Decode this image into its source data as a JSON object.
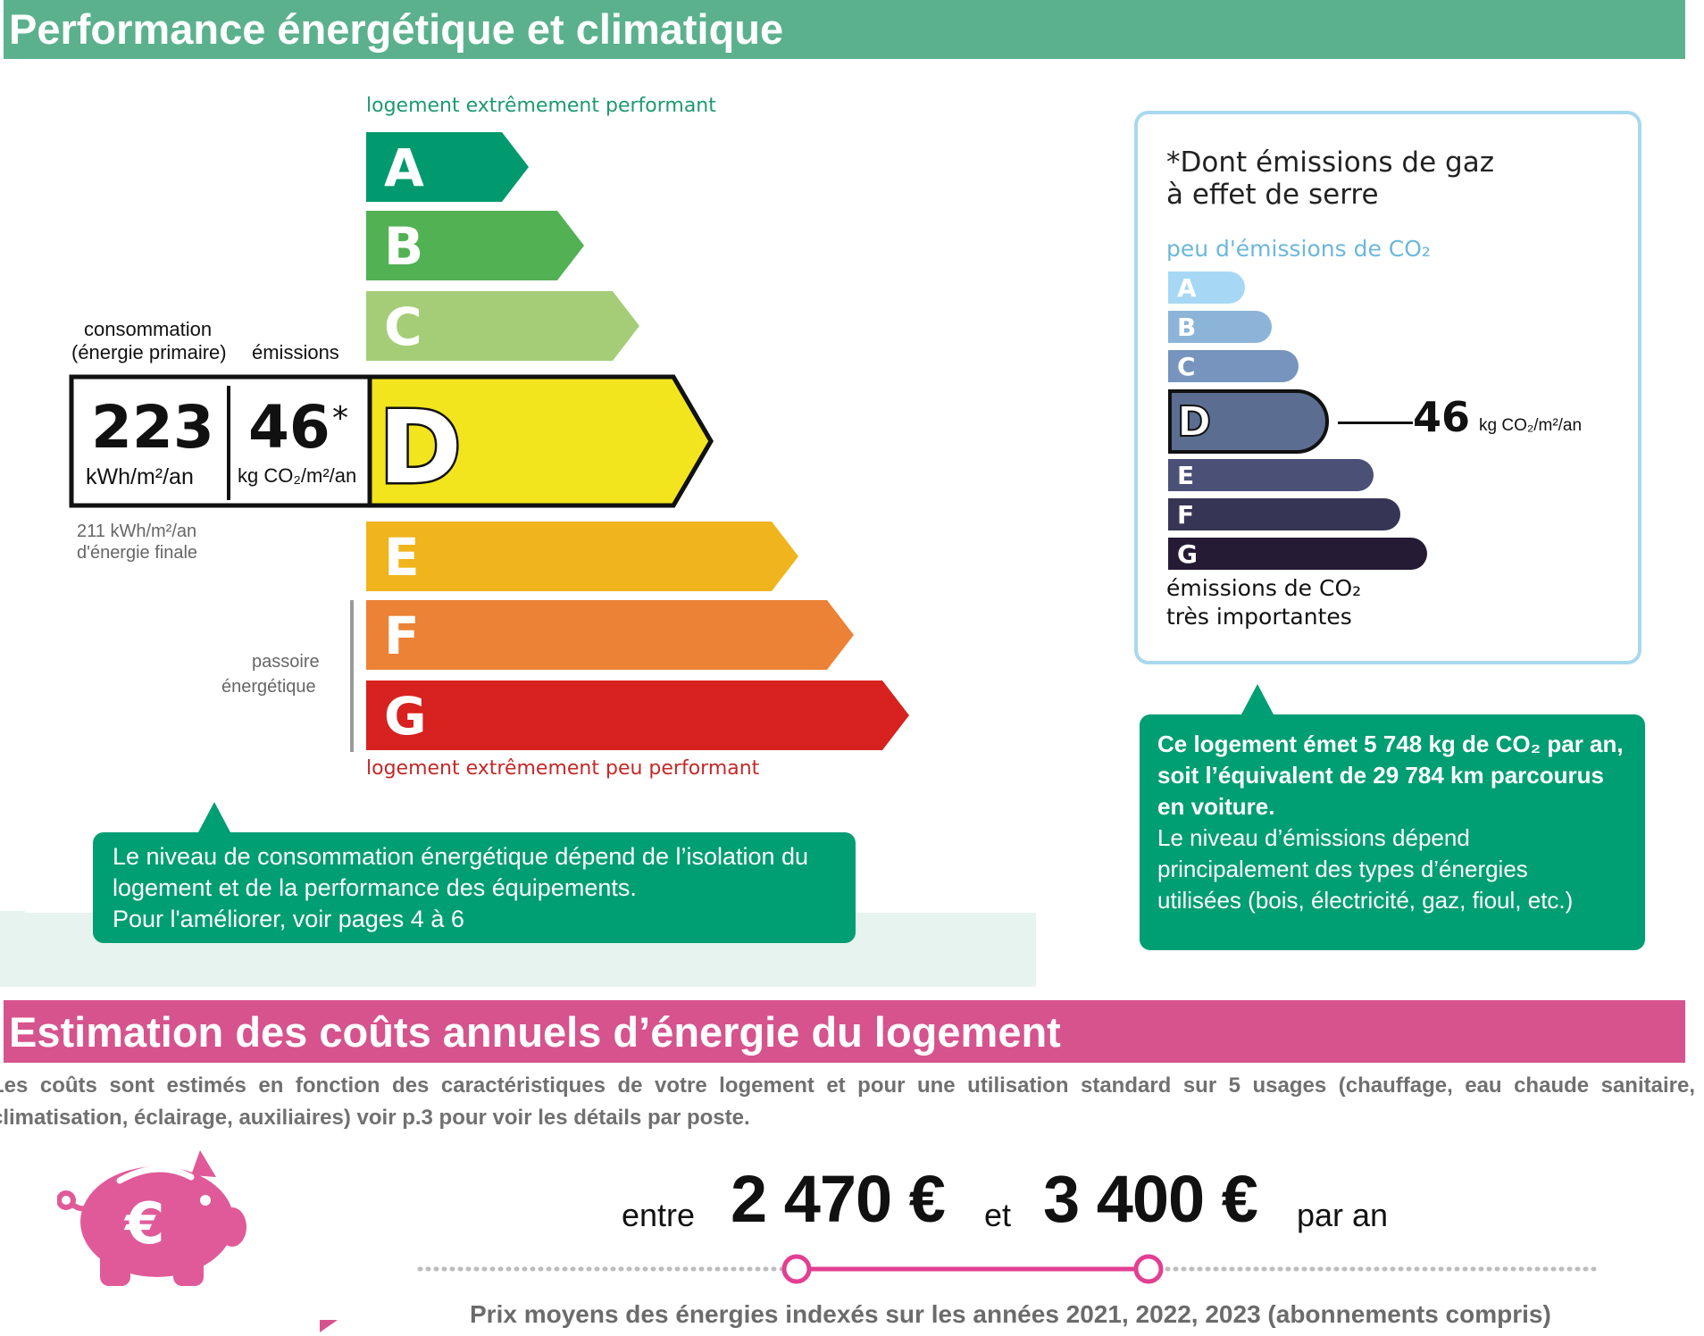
{
  "section1": {
    "title": "Performance énergétique et climatique"
  },
  "dpe": {
    "top_caption": "logement extrêmement performant",
    "bottom_caption": "logement extrêmement peu performant",
    "classes": [
      {
        "letter": "A",
        "color": "#009a6e"
      },
      {
        "letter": "B",
        "color": "#52b153"
      },
      {
        "letter": "C",
        "color": "#a5cd78"
      },
      {
        "letter": "D",
        "color": "#f2e51e"
      },
      {
        "letter": "E",
        "color": "#f0b41c"
      },
      {
        "letter": "F",
        "color": "#eb8235"
      },
      {
        "letter": "G",
        "color": "#d7221f"
      }
    ],
    "current_class": "D",
    "consumption_header_1": "consommation",
    "consumption_header_2": "(énergie primaire)",
    "emissions_header": "émissions",
    "consumption_value": "223",
    "consumption_unit": "kWh/m²/an",
    "emissions_value": "46",
    "emissions_star": "*",
    "emissions_unit": "kg CO₂/m²/an",
    "final_energy_1": "211 kWh/m²/an",
    "final_energy_2": "d'énergie finale",
    "passoire_1": "passoire",
    "passoire_2": "énergétique"
  },
  "consumption_note": {
    "line1": "Le niveau de consommation énergétique dépend de l’isolation du",
    "line2": "logement et de la performance des équipements.",
    "line3": "Pour l'améliorer, voir pages 4 à 6"
  },
  "ges": {
    "title_1": "*Dont émissions de gaz",
    "title_2": "à effet de serre",
    "low_caption": "peu d'émissions de CO₂",
    "high_caption_1": "émissions de CO₂",
    "high_caption_2": "très importantes",
    "classes": [
      {
        "letter": "A",
        "color": "#a6d8f5"
      },
      {
        "letter": "B",
        "color": "#8cb4d9"
      },
      {
        "letter": "C",
        "color": "#7694bd"
      },
      {
        "letter": "D",
        "color": "#5b6e92"
      },
      {
        "letter": "E",
        "color": "#4a5076"
      },
      {
        "letter": "F",
        "color": "#363556"
      },
      {
        "letter": "G",
        "color": "#251b34"
      }
    ],
    "current_class": "D",
    "value": "46",
    "unit": "kg CO₂/m²/an"
  },
  "emission_note": {
    "bold": "Ce logement émet 5 748 kg de CO₂ par an, soit l’équivalent de 29 784 km parcourus en voiture.",
    "line1": "Le niveau d’émissions dépend",
    "line2": "principalement des types d’énergies",
    "line3": "utilisées (bois, électricité, gaz, fioul, etc.)"
  },
  "section2": {
    "title": "Estimation des coûts annuels d’énergie du logement",
    "description": "Les coûts sont estimés en fonction des caractéristiques de votre logement et pour une utilisation standard sur 5 usages (chauffage, eau chaude sanitaire, climatisation, éclairage, auxiliaires) voir p.3 pour voir les détails par poste."
  },
  "costs": {
    "word_between": "entre",
    "min": "2 470 €",
    "word_and": "et",
    "max": "3 400 €",
    "word_per_year": "par an",
    "footnote": "Prix moyens des énergies indexés sur les années 2021, 2022, 2023 (abonnements compris)",
    "accent": "#e23f93",
    "piggy_color": "#e05a99"
  },
  "icons": [
    "piggy-bank-euro-icon"
  ]
}
